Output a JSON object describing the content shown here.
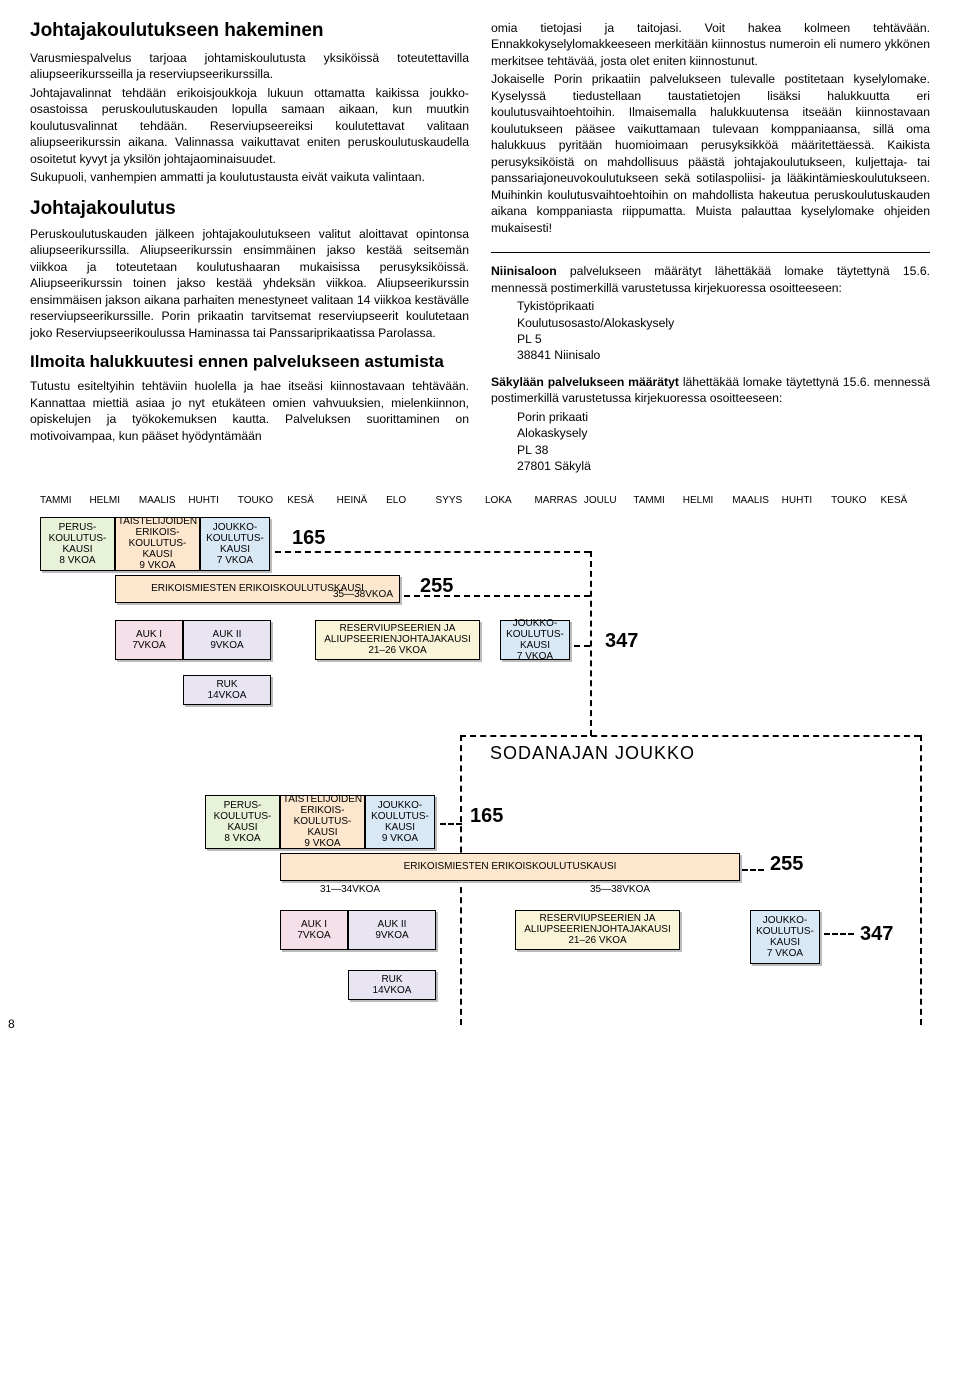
{
  "col_left": {
    "h1": "Johtajakoulutukseen hakeminen",
    "p1": "Varusmiespalvelus tarjoaa johtamiskoulutusta yksiköissä toteutettavilla aliupseerikursseilla ja reserviupseerikurssilla.",
    "p2": "Johtajavalinnat tehdään erikoisjoukkoja lukuun ottamatta kaikissa joukko-osastoissa peruskoulutuskauden lopulla samaan aikaan, kun muutkin koulutusvalinnat tehdään. Reserviupseereiksi koulutettavat valitaan aliupseerikurssin aikana. Valinnassa vaikuttavat eniten peruskoulutuskaudella osoitetut kyvyt ja yksilön johtajaominaisuudet.",
    "p3": "Sukupuoli, vanhempien ammatti ja koulutustausta eivät vaikuta valintaan.",
    "h2": "Johtajakoulutus",
    "p4": "Peruskoulutuskauden jälkeen johtajakoulutukseen valitut aloittavat opintonsa aliupseerikurssilla. Aliupseerikurssin ensimmäinen jakso kestää seitsemän viikkoa ja toteutetaan koulutushaaran mukaisissa perusyksiköissä. Aliupseerikurssin toinen jakso kestää yhdeksän viikkoa. Aliupseerikurssin ensimmäisen jakson aikana parhaiten menestyneet valitaan 14 viikkoa kestävälle reserviupseerikurssille. Porin prikaatin tarvitsemat reserviupseerit koulutetaan joko Reserviupseerikoulussa Haminassa tai Panssariprikaatissa Parolassa.",
    "h3": "Ilmoita halukkuutesi ennen palvelukseen astumista",
    "p5": "Tutustu esiteltyihin tehtäviin huolella ja hae itseäsi kiinnostavaan tehtävään. Kannattaa miettiä asiaa jo nyt etukäteen omien vahvuuksien, mielenkiinnon, opiskelujen ja työkokemuksen kautta. Palveluksen suorittaminen on motivoivampaa, kun pääset hyödyntämään"
  },
  "col_right": {
    "p1": "omia tietojasi ja taitojasi. Voit hakea kolmeen tehtävään. Ennakkokyselylomakkeeseen merkitään kiinnostus numeroin eli numero ykkönen merkitsee tehtävää, josta olet eniten kiinnostunut.",
    "p2": "Jokaiselle Porin prikaatiin palvelukseen tulevalle postitetaan kyselylomake. Kyselyssä tiedustellaan taustatietojen lisäksi halukkuutta eri koulutusvaihtoehtoihin. Ilmaisemalla halukkuutensa itseään kiinnostavaan koulutukseen pääsee vaikuttamaan tulevaan komppaniaansa, sillä oma halukkuus pyritään huomioimaan perusyksikköä määritettäessä. Kaikista perusyksiköistä on mahdollisuus päästä johtajakoulutukseen, kuljettaja- tai panssariajoneuvokoulutukseen sekä sotilaspoliisi- ja lääkintämieskoulutukseen. Muihinkin koulutusvaihtoehtoihin on mahdollista hakeutua peruskoulutuskauden aikana komppaniasta riippumatta. Muista palauttaa kyselylomake ohjeiden mukaisesti!",
    "p3a": "Niinisaloon",
    "p3b": " palvelukseen määrätyt lähettäkää lomake täytettynä 15.6. mennessä postimerkillä varustetussa kirjekuoressa osoitteeseen:",
    "addr1": {
      "l1": "Tykistöprikaati",
      "l2": "Koulutusosasto/Alokaskysely",
      "l3": "PL 5",
      "l4": "38841 Niinisalo"
    },
    "p4a": "Säkylään palvelukseen määrätyt",
    "p4b": " lähettäkää lomake täytettynä 15.6. mennessä postimerkillä varustetussa kirjekuoressa osoitteeseen:",
    "addr2": {
      "l1": "Porin prikaati",
      "l2": "Alokaskysely",
      "l3": "PL 38",
      "l4": "27801 Säkylä"
    }
  },
  "diagram": {
    "months": [
      "TAMMI",
      "HELMI",
      "MAALIS",
      "HUHTI",
      "TOUKO",
      "KESÄ",
      "HEINÄ",
      "ELO",
      "SYYS",
      "LOKA",
      "MARRAS",
      "JOULU",
      "TAMMI",
      "HELMI",
      "MAALIS",
      "HUHTI",
      "TOUKO",
      "KESÄ"
    ],
    "perus": {
      "l1": "PERUS-",
      "l2": "KOULUTUS-",
      "l3": "KAUSI",
      "l4": "8 VKOA"
    },
    "taist": {
      "l1": "TAISTELIJOIDEN",
      "l2": "ERIKOIS-",
      "l3": "KOULUTUS-",
      "l4": "KAUSI",
      "l5": "9 VKOA"
    },
    "joukko7": {
      "l1": "JOUKKO-",
      "l2": "KOULUTUS-",
      "l3": "KAUSI",
      "l4": "7 VKOA"
    },
    "joukko9": {
      "l1": "JOUKKO-",
      "l2": "KOULUTUS-",
      "l3": "KAUSI",
      "l4": "9 VKOA"
    },
    "erikois": "ERIKOISMIESTEN  ERIKOISKOULUTUSKAUSI",
    "w3538": "35—38VKOA",
    "w3134": "31—34VKOA",
    "auk1": {
      "l1": "AUK I",
      "l2": "7VKOA"
    },
    "auk2": {
      "l1": "AUK II",
      "l2": "9VKOA"
    },
    "ruk": {
      "l1": "RUK",
      "l2": "14VKOA"
    },
    "reservi": {
      "l1": "RESERVIUPSEERIEN JA",
      "l2": "ALIUPSEERIENJOHTAJAKAUSI",
      "l3": "21–26 VKOA"
    },
    "n165": "165",
    "n255": "255",
    "n347": "347",
    "sodan": "SODANAJAN JOUKKO"
  },
  "pagenum": "8"
}
